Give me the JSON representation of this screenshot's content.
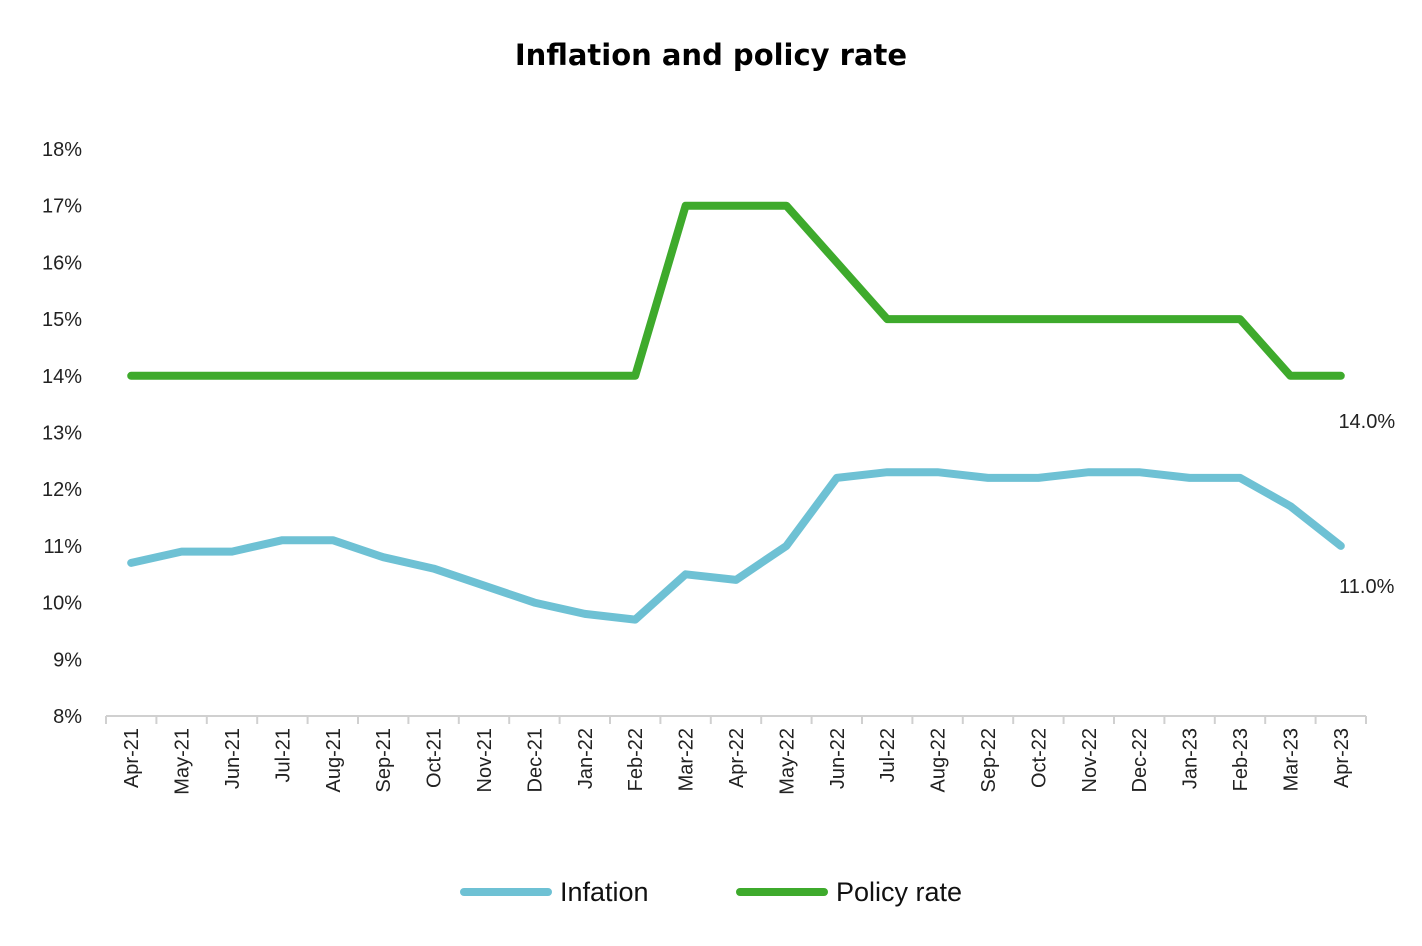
{
  "chart_data": {
    "type": "line",
    "title": "Inflation and policy rate",
    "xlabel": "",
    "ylabel": "",
    "categories": [
      "Apr-21",
      "May-21",
      "Jun-21",
      "Jul-21",
      "Aug-21",
      "Sep-21",
      "Oct-21",
      "Nov-21",
      "Dec-21",
      "Jan-22",
      "Feb-22",
      "Mar-22",
      "Apr-22",
      "May-22",
      "Jun-22",
      "Jul-22",
      "Aug-22",
      "Sep-22",
      "Oct-22",
      "Nov-22",
      "Dec-22",
      "Jan-23",
      "Feb-23",
      "Mar-23",
      "Apr-23"
    ],
    "ylim": [
      8,
      18
    ],
    "yticks": [
      "8%",
      "9%",
      "10%",
      "11%",
      "12%",
      "13%",
      "14%",
      "15%",
      "16%",
      "17%",
      "18%"
    ],
    "grid": false,
    "legend_position": "bottom",
    "series": [
      {
        "name": "Infation",
        "color": "#6ec1d4",
        "values": [
          10.7,
          10.9,
          10.9,
          11.1,
          11.1,
          10.8,
          10.6,
          10.3,
          10.0,
          9.8,
          9.7,
          10.5,
          10.4,
          11.0,
          12.2,
          12.3,
          12.3,
          12.2,
          12.2,
          12.3,
          12.3,
          12.2,
          12.2,
          11.7,
          11.0
        ],
        "end_label": "11.0%"
      },
      {
        "name": "Policy rate",
        "color": "#3eaa2c",
        "values": [
          14,
          14,
          14,
          14,
          14,
          14,
          14,
          14,
          14,
          14,
          14,
          17,
          17,
          17,
          16,
          15,
          15,
          15,
          15,
          15,
          15,
          15,
          15,
          14,
          14
        ],
        "end_label": "14.0%"
      }
    ]
  }
}
